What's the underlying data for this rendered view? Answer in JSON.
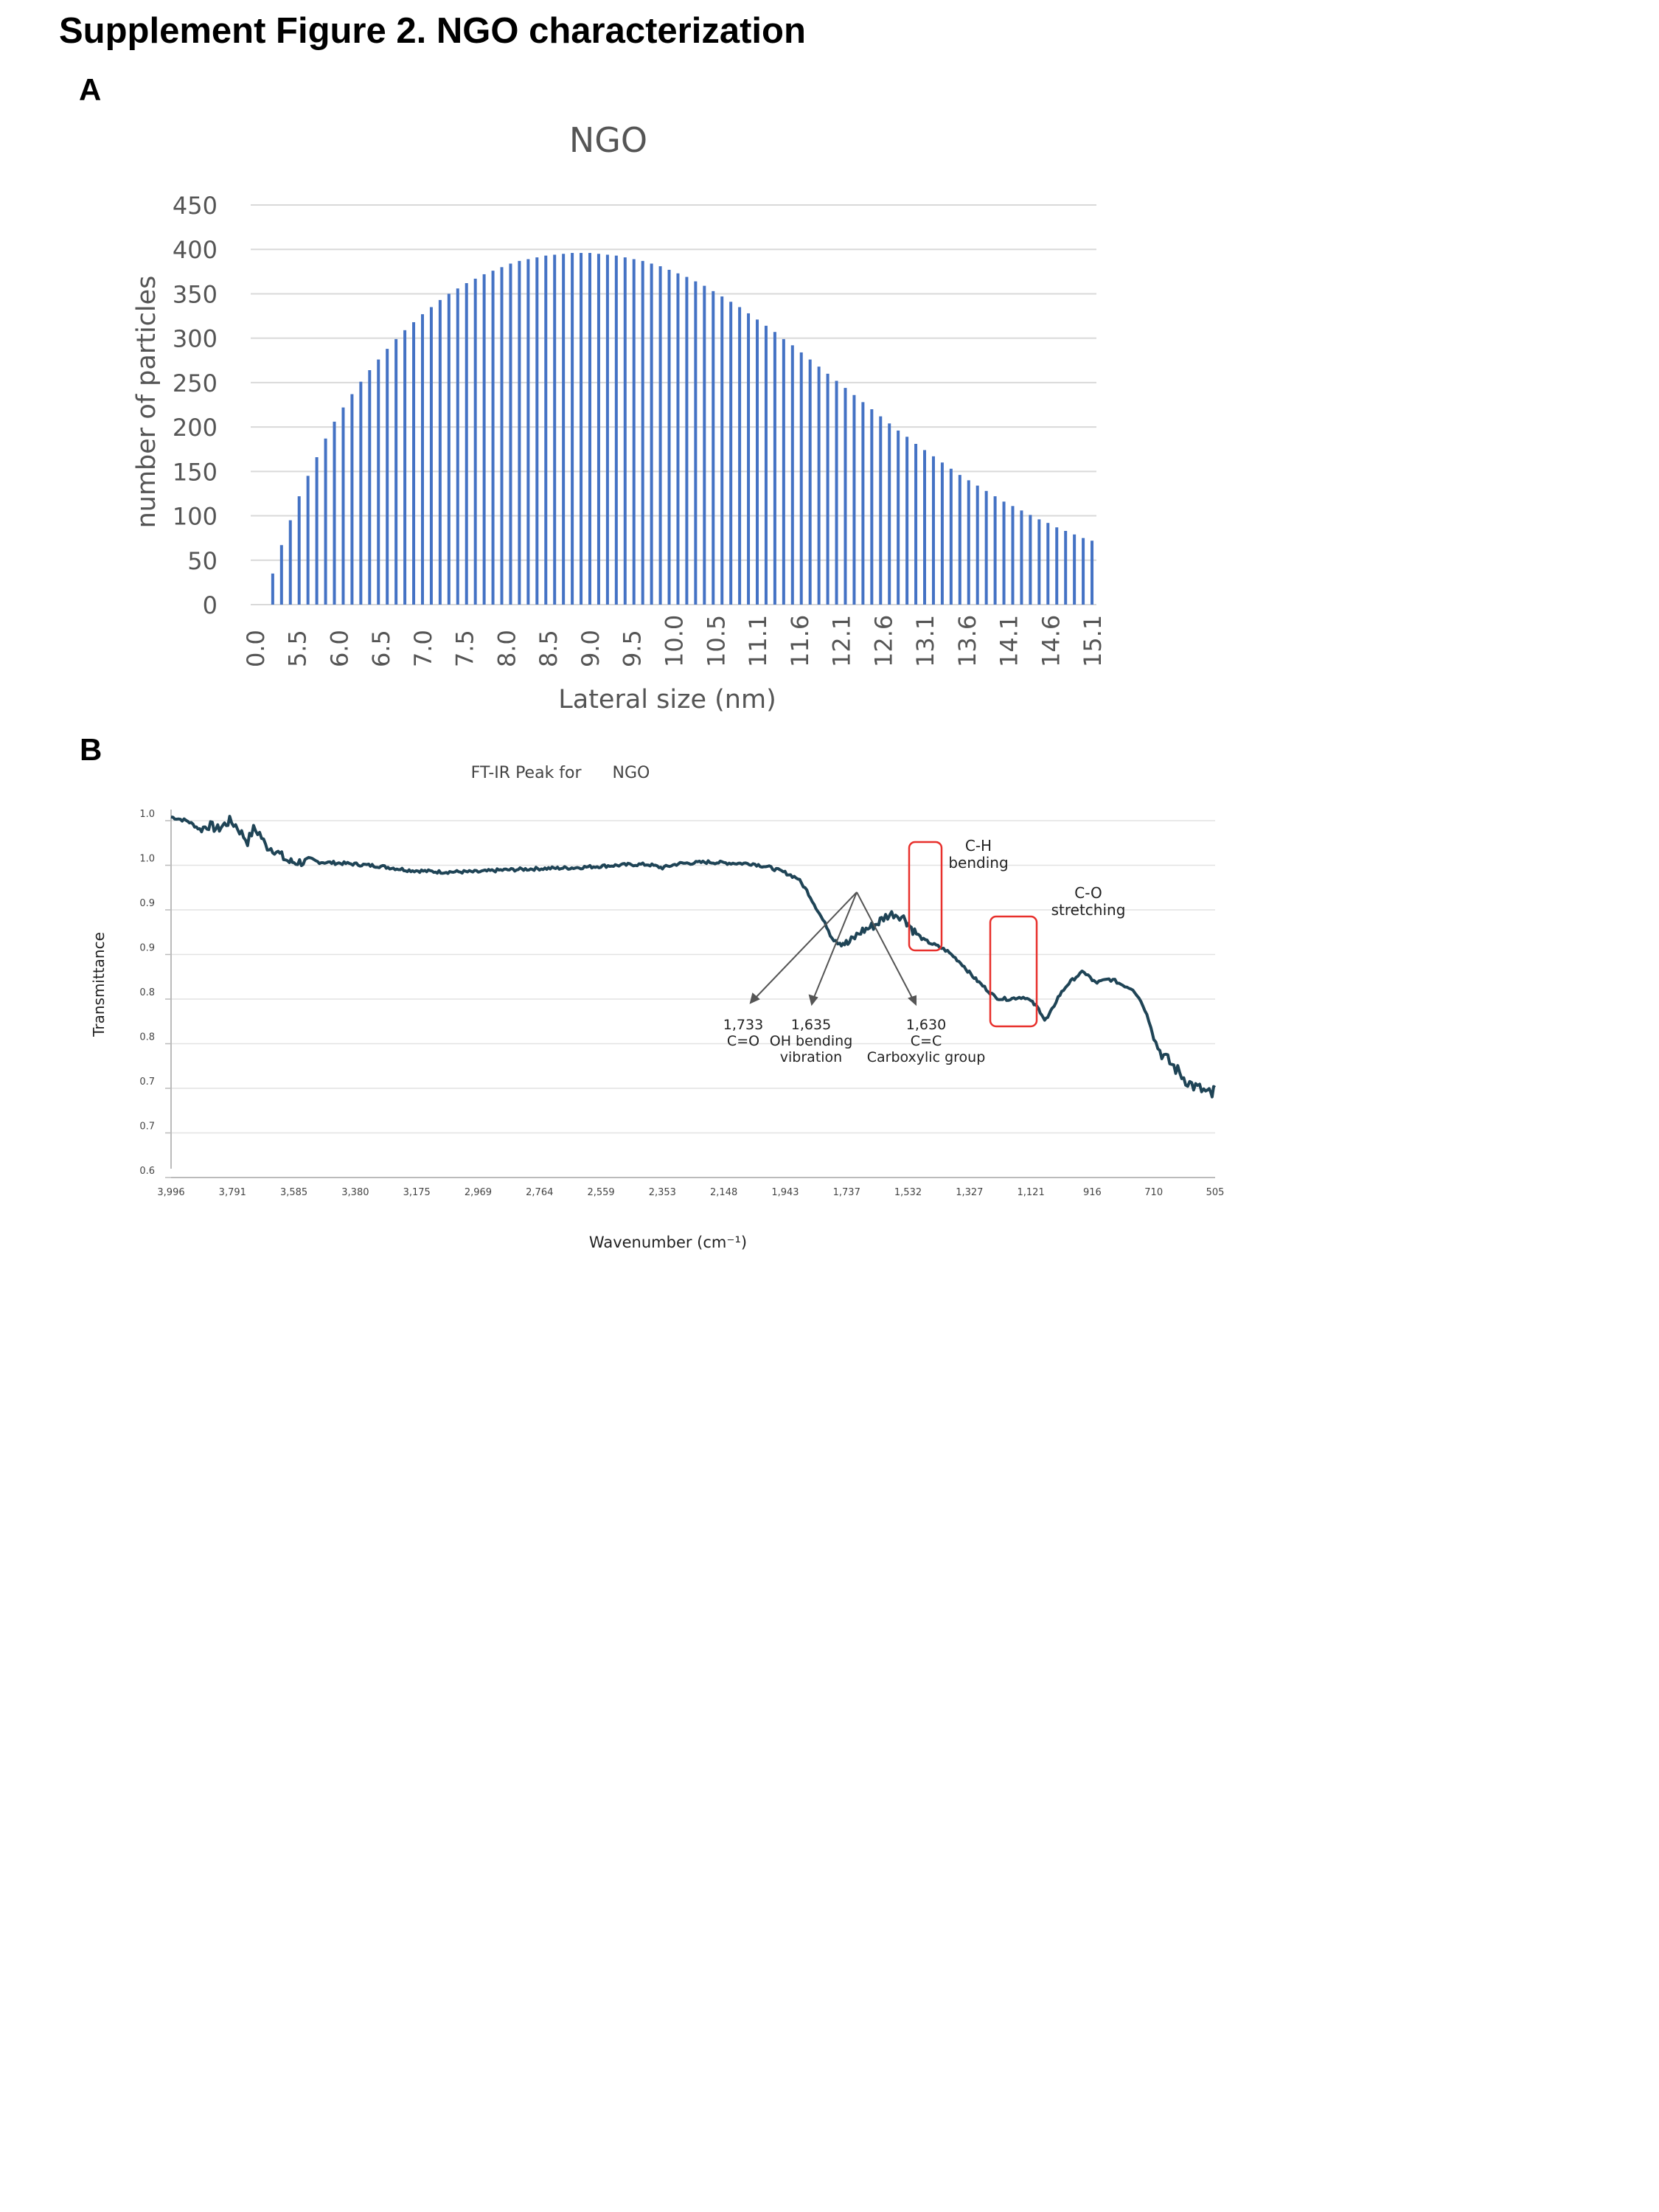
{
  "figure": {
    "title": "Supplement Figure 2. NGO characterization",
    "panel_a_label": "A",
    "panel_b_label": "B"
  },
  "chart_data": [
    {
      "type": "bar",
      "title": "NGO",
      "xlabel": "Lateral size (nm)",
      "ylabel": "number of particles",
      "ylim": [
        0,
        450
      ],
      "yticks": [
        "0",
        "50",
        "100",
        "150",
        "200",
        "250",
        "300",
        "350",
        "400",
        "450"
      ],
      "xtick_labels": [
        "0.0",
        "5.5",
        "6.0",
        "6.5",
        "7.0",
        "7.5",
        "8.0",
        "8.5",
        "9.0",
        "9.5",
        "10.0",
        "10.5",
        "11.1",
        "11.6",
        "12.1",
        "12.6",
        "13.1",
        "13.6",
        "14.1",
        "14.6",
        "15.1"
      ],
      "bar_color": "#4472c4",
      "grid": true,
      "values": [
        0,
        0,
        35,
        67,
        95,
        122,
        145,
        166,
        187,
        206,
        222,
        237,
        251,
        264,
        276,
        288,
        299,
        309,
        318,
        327,
        335,
        343,
        350,
        356,
        362,
        367,
        372,
        376,
        380,
        384,
        387,
        389,
        391,
        393,
        394,
        395,
        396,
        396,
        396,
        395,
        394,
        393,
        391,
        389,
        387,
        384,
        381,
        377,
        373,
        369,
        364,
        359,
        353,
        347,
        341,
        335,
        328,
        321,
        314,
        307,
        299,
        292,
        284,
        276,
        268,
        260,
        252,
        244,
        236,
        228,
        220,
        212,
        204,
        196,
        189,
        181,
        174,
        167,
        160,
        153,
        146,
        140,
        134,
        128,
        122,
        116,
        111,
        106,
        101,
        96,
        92,
        87,
        83,
        79,
        75,
        72
      ]
    },
    {
      "type": "line",
      "title": "FT-IR Peak for      NGO",
      "xlabel": "Wavenumber (cm⁻¹)",
      "ylabel": "Transmittance",
      "yticks": [
        "0.6",
        "0.7",
        "0.7",
        "0.8",
        "0.8",
        "0.9",
        "0.9",
        "1.0",
        "1.0"
      ],
      "xtick_labels": [
        "3,996",
        "3,791",
        "3,585",
        "3,380",
        "3,175",
        "2,969",
        "2,764",
        "2,559",
        "2,353",
        "2,148",
        "1,943",
        "1,737",
        "1,532",
        "1,327",
        "1,121",
        "916",
        "710",
        "505"
      ],
      "line_color": "#1f4456",
      "highlight_color": "#e8302c",
      "points": [
        [
          3996,
          1.04
        ],
        [
          3940,
          1.035
        ],
        [
          3900,
          1.025
        ],
        [
          3870,
          1.03
        ],
        [
          3840,
          1.025
        ],
        [
          3800,
          1.035
        ],
        [
          3780,
          1.03
        ],
        [
          3760,
          1.02
        ],
        [
          3740,
          1.01
        ],
        [
          3720,
          1.025
        ],
        [
          3700,
          1.02
        ],
        [
          3680,
          1.005
        ],
        [
          3650,
          1.0
        ],
        [
          3620,
          0.99
        ],
        [
          3600,
          0.985
        ],
        [
          3585,
          0.985
        ],
        [
          3560,
          0.985
        ],
        [
          3500,
          0.985
        ],
        [
          3400,
          0.983
        ],
        [
          3300,
          0.98
        ],
        [
          3200,
          0.975
        ],
        [
          3100,
          0.973
        ],
        [
          2969,
          0.973
        ],
        [
          2900,
          0.975
        ],
        [
          2764,
          0.977
        ],
        [
          2650,
          0.978
        ],
        [
          2559,
          0.98
        ],
        [
          2450,
          0.982
        ],
        [
          2400,
          0.982
        ],
        [
          2353,
          0.978
        ],
        [
          2300,
          0.983
        ],
        [
          2200,
          0.985
        ],
        [
          2148,
          0.984
        ],
        [
          2050,
          0.983
        ],
        [
          1990,
          0.978
        ],
        [
          1943,
          0.972
        ],
        [
          1900,
          0.965
        ],
        [
          1870,
          0.95
        ],
        [
          1840,
          0.93
        ],
        [
          1810,
          0.91
        ],
        [
          1780,
          0.893
        ],
        [
          1760,
          0.888
        ],
        [
          1733,
          0.885
        ],
        [
          1710,
          0.893
        ],
        [
          1690,
          0.9
        ],
        [
          1660,
          0.905
        ],
        [
          1635,
          0.91
        ],
        [
          1620,
          0.915
        ],
        [
          1600,
          0.92
        ],
        [
          1580,
          0.922
        ],
        [
          1560,
          0.92
        ],
        [
          1540,
          0.915
        ],
        [
          1532,
          0.91
        ],
        [
          1510,
          0.9
        ],
        [
          1480,
          0.89
        ],
        [
          1450,
          0.885
        ],
        [
          1420,
          0.88
        ],
        [
          1400,
          0.876
        ],
        [
          1380,
          0.87
        ],
        [
          1350,
          0.86
        ],
        [
          1327,
          0.85
        ],
        [
          1300,
          0.84
        ],
        [
          1270,
          0.83
        ],
        [
          1240,
          0.82
        ],
        [
          1215,
          0.818
        ],
        [
          1190,
          0.818
        ],
        [
          1160,
          0.82
        ],
        [
          1140,
          0.82
        ],
        [
          1121,
          0.815
        ],
        [
          1100,
          0.808
        ],
        [
          1085,
          0.8
        ],
        [
          1075,
          0.792
        ],
        [
          1065,
          0.795
        ],
        [
          1050,
          0.805
        ],
        [
          1030,
          0.82
        ],
        [
          1000,
          0.835
        ],
        [
          970,
          0.845
        ],
        [
          950,
          0.85
        ],
        [
          930,
          0.848
        ],
        [
          916,
          0.84
        ],
        [
          900,
          0.838
        ],
        [
          880,
          0.84
        ],
        [
          860,
          0.842
        ],
        [
          840,
          0.84
        ],
        [
          820,
          0.836
        ],
        [
          800,
          0.833
        ],
        [
          780,
          0.83
        ],
        [
          760,
          0.82
        ],
        [
          740,
          0.805
        ],
        [
          720,
          0.785
        ],
        [
          710,
          0.77
        ],
        [
          690,
          0.755
        ],
        [
          670,
          0.745
        ],
        [
          650,
          0.738
        ],
        [
          630,
          0.73
        ],
        [
          610,
          0.722
        ],
        [
          590,
          0.715
        ],
        [
          570,
          0.71
        ],
        [
          550,
          0.707
        ],
        [
          530,
          0.703
        ],
        [
          515,
          0.7
        ],
        [
          505,
          0.71
        ]
      ],
      "annotations": [
        {
          "line1": "1,733",
          "line2": "C=O"
        },
        {
          "line1": "1,635",
          "line2": "OH bending",
          "line3": "vibration"
        },
        {
          "line1": "1,630",
          "line2": "C=C",
          "line3": "Carboxylic group"
        },
        {
          "line1": "C-H",
          "line2": "bending"
        },
        {
          "line1": "C-O",
          "line2": "stretching"
        }
      ]
    }
  ]
}
